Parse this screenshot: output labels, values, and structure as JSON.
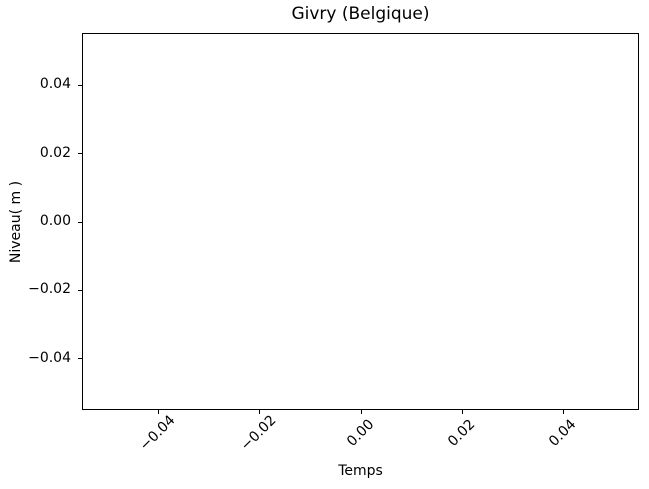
{
  "chart_data": {
    "type": "line",
    "title": "Givry (Belgique)",
    "xlabel": "Temps",
    "ylabel": "Niveau( m )",
    "series": [],
    "x_ticks": [
      -0.04,
      -0.02,
      0.0,
      0.02,
      0.04
    ],
    "y_ticks": [
      0.04,
      0.02,
      0.0,
      -0.02,
      -0.04
    ],
    "x_tick_labels": [
      "−0.04",
      "−0.02",
      "0.00",
      "0.02",
      "0.04"
    ],
    "y_tick_labels": [
      "0.04",
      "0.02",
      "0.00",
      "−0.02",
      "−0.04"
    ],
    "xlim": [
      -0.055,
      0.055
    ],
    "ylim": [
      -0.055,
      0.055
    ],
    "grid": false,
    "legend": null,
    "x_tick_rotation_deg": 45
  },
  "colors": {
    "background": "#ffffff",
    "axes_background": "#ffffff",
    "spine": "#000000",
    "text": "#000000"
  }
}
